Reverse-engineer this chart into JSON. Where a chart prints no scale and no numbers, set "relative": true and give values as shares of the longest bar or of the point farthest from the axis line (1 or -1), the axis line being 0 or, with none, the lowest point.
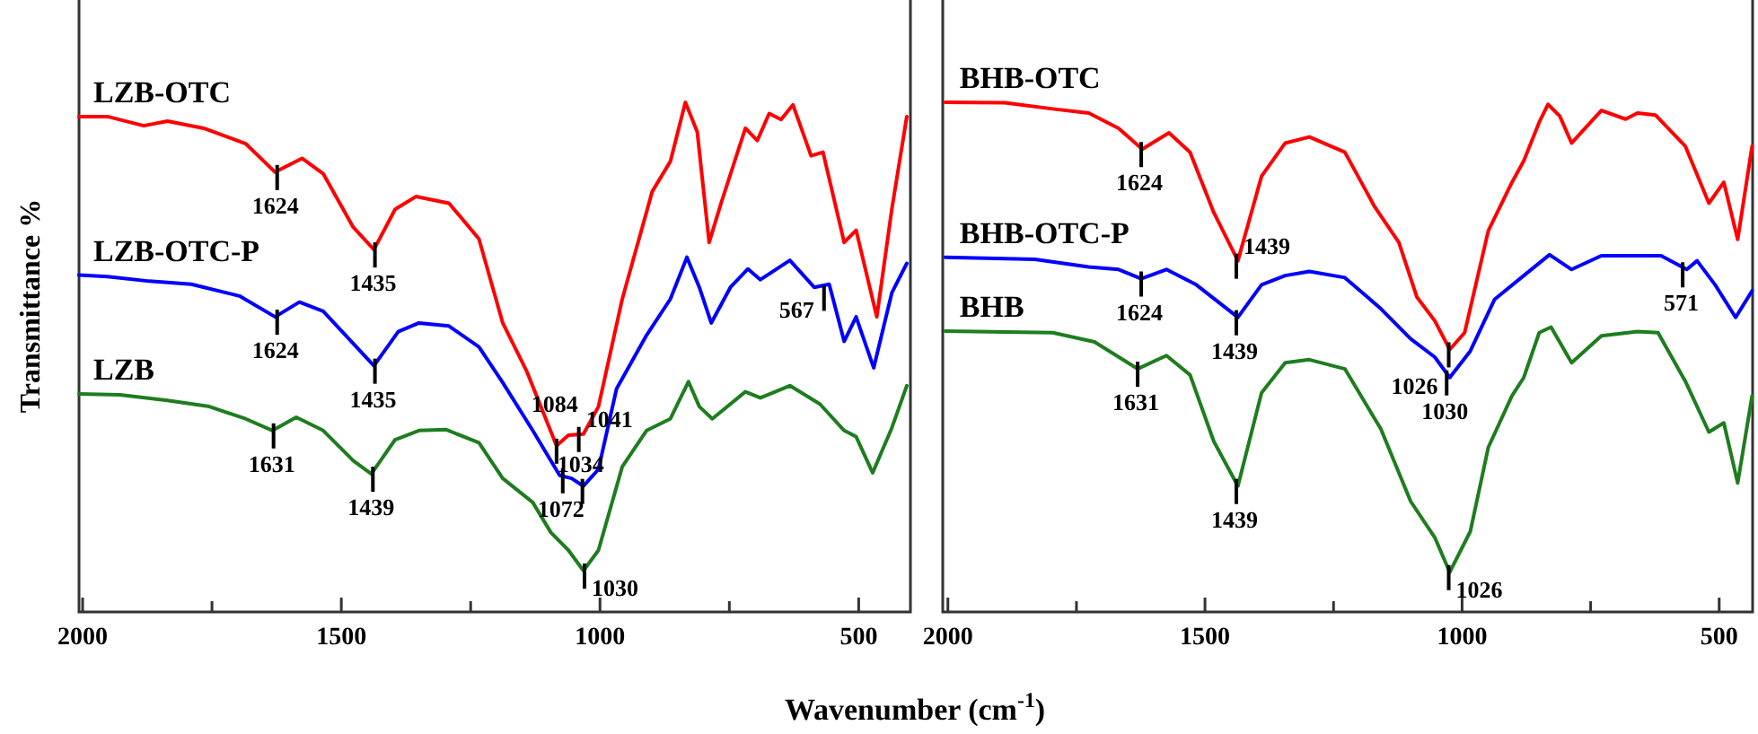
{
  "chart_data": [
    {
      "type": "line",
      "relative": true,
      "ylabel": "Transmittance %",
      "xlabel": "Wavenumber (cm$^{-1}$)",
      "xlim": [
        2007,
        400
      ],
      "xticks": [
        2000,
        {
          "value": 1750,
          "label": null
        },
        1500,
        {
          "value": 1250,
          "label": null
        },
        1000,
        {
          "value": 750,
          "label": null
        },
        500
      ],
      "series": [
        {
          "name": "LZB-OTC",
          "color": "#ff0000",
          "x": [
            2007,
            1952,
            1882,
            1836,
            1766,
            1685,
            1628,
            1576,
            1535,
            1477,
            1437,
            1396,
            1356,
            1292,
            1234,
            1188,
            1142,
            1084,
            1061,
            1032,
            1003,
            957,
            899,
            864,
            835,
            812,
            789,
            766,
            719,
            696,
            673,
            650,
            627,
            592,
            569,
            528,
            505,
            465,
            436,
            407
          ],
          "values": [
            0.972,
            0.972,
            0.954,
            0.963,
            0.949,
            0.919,
            0.863,
            0.89,
            0.86,
            0.755,
            0.711,
            0.79,
            0.815,
            0.802,
            0.732,
            0.567,
            0.473,
            0.326,
            0.347,
            0.349,
            0.403,
            0.614,
            0.825,
            0.884,
            1,
            0.942,
            0.725,
            0.802,
            0.949,
            0.925,
            0.978,
            0.966,
            0.995,
            0.895,
            0.902,
            0.725,
            0.749,
            0.579,
            0.79,
            0.972
          ]
        },
        {
          "name": "LZB-OTC-P",
          "color": "#0000ff",
          "x": [
            2007,
            1952,
            1871,
            1790,
            1697,
            1628,
            1581,
            1535,
            1437,
            1390,
            1350,
            1292,
            1234,
            1188,
            1130,
            1078,
            1055,
            1032,
            1003,
            968,
            910,
            864,
            832,
            808,
            785,
            748,
            714,
            690,
            633,
            586,
            557,
            528,
            505,
            471,
            436,
            407
          ],
          "values": [
            0.661,
            0.658,
            0.649,
            0.643,
            0.62,
            0.579,
            0.608,
            0.59,
            0.483,
            0.55,
            0.567,
            0.561,
            0.52,
            0.45,
            0.356,
            0.268,
            0.262,
            0.247,
            0.28,
            0.438,
            0.543,
            0.614,
            0.696,
            0.637,
            0.567,
            0.637,
            0.673,
            0.652,
            0.69,
            0.637,
            0.643,
            0.531,
            0.579,
            0.479,
            0.626,
            0.684
          ]
        },
        {
          "name": "LZB",
          "color": "#1e7d1e",
          "x": [
            2007,
            1928,
            1836,
            1755,
            1685,
            1633,
            1587,
            1535,
            1477,
            1442,
            1396,
            1350,
            1298,
            1234,
            1188,
            1130,
            1095,
            1061,
            1032,
            1003,
            957,
            910,
            864,
            829,
            808,
            783,
            719,
            690,
            633,
            575,
            528,
            505,
            473,
            436,
            407
          ],
          "values": [
            0.428,
            0.426,
            0.415,
            0.403,
            0.379,
            0.356,
            0.382,
            0.356,
            0.297,
            0.271,
            0.338,
            0.356,
            0.358,
            0.332,
            0.262,
            0.215,
            0.156,
            0.121,
            0.081,
            0.121,
            0.285,
            0.356,
            0.379,
            0.452,
            0.403,
            0.379,
            0.432,
            0.42,
            0.444,
            0.408,
            0.356,
            0.344,
            0.273,
            0.361,
            0.444
          ]
        }
      ],
      "annotations": [
        {
          "text": "1624",
          "x": 1624,
          "y": 0.863
        },
        {
          "text": "1435",
          "x": 1435,
          "y": 0.711
        },
        {
          "text": "1084",
          "x": 1084,
          "y": 0.326
        },
        {
          "text": "1041",
          "x": 1041,
          "y": 0.349
        },
        {
          "text": "1624",
          "x": 1624,
          "y": 0.579
        },
        {
          "text": "1435",
          "x": 1435,
          "y": 0.483
        },
        {
          "text": "1072",
          "x": 1072,
          "y": 0.268
        },
        {
          "text": "1034",
          "x": 1034,
          "y": 0.247
        },
        {
          "text": "567",
          "x": 567,
          "y": 0.626
        },
        {
          "text": "1631",
          "x": 1631,
          "y": 0.356
        },
        {
          "text": "1439",
          "x": 1439,
          "y": 0.271
        },
        {
          "text": "1030",
          "x": 1030,
          "y": 0.081
        }
      ]
    },
    {
      "type": "line",
      "relative": true,
      "xlim": [
        2010,
        435
      ],
      "xticks": [
        2000,
        {
          "value": 1750,
          "label": null
        },
        1500,
        {
          "value": 1250,
          "label": null
        },
        1000,
        {
          "value": 750,
          "label": null
        },
        500
      ],
      "series": [
        {
          "name": "BHB-OTC",
          "color": "#ff0000",
          "x": [
            2005,
            1889,
            1796,
            1726,
            1668,
            1622,
            1570,
            1529,
            1483,
            1436,
            1390,
            1344,
            1297,
            1228,
            1170,
            1123,
            1088,
            1053,
            1024,
            995,
            949,
            903,
            880,
            850,
            833,
            810,
            787,
            729,
            682,
            659,
            624,
            566,
            520,
            491,
            464,
            436
          ],
          "values": [
            1,
            0.999,
            0.987,
            0.979,
            0.949,
            0.908,
            0.94,
            0.902,
            0.784,
            0.689,
            0.855,
            0.92,
            0.932,
            0.902,
            0.795,
            0.725,
            0.618,
            0.571,
            0.515,
            0.548,
            0.748,
            0.843,
            0.885,
            0.961,
            0.996,
            0.973,
            0.92,
            0.984,
            0.967,
            0.979,
            0.975,
            0.914,
            0.802,
            0.843,
            0.731,
            0.914
          ]
        },
        {
          "name": "BHB-OTC-P",
          "color": "#0000ff",
          "x": [
            2005,
            1831,
            1726,
            1668,
            1624,
            1575,
            1517,
            1436,
            1390,
            1344,
            1297,
            1228,
            1158,
            1100,
            1053,
            1024,
            984,
            937,
            880,
            830,
            787,
            729,
            613,
            563,
            543,
            508,
            468,
            436
          ],
          "values": [
            0.696,
            0.692,
            0.677,
            0.672,
            0.654,
            0.672,
            0.642,
            0.578,
            0.642,
            0.66,
            0.668,
            0.656,
            0.595,
            0.536,
            0.5,
            0.46,
            0.512,
            0.613,
            0.66,
            0.701,
            0.672,
            0.699,
            0.699,
            0.672,
            0.689,
            0.642,
            0.578,
            0.63
          ]
        },
        {
          "name": "BHB",
          "color": "#1e7d1e",
          "x": [
            2005,
            1796,
            1715,
            1631,
            1575,
            1529,
            1483,
            1436,
            1390,
            1344,
            1297,
            1228,
            1158,
            1100,
            1053,
            1024,
            984,
            949,
            903,
            880,
            850,
            827,
            787,
            729,
            659,
            619,
            566,
            520,
            491,
            464,
            436
          ],
          "values": [
            0.551,
            0.548,
            0.53,
            0.477,
            0.503,
            0.465,
            0.335,
            0.247,
            0.43,
            0.489,
            0.495,
            0.477,
            0.359,
            0.217,
            0.146,
            0.078,
            0.158,
            0.323,
            0.424,
            0.46,
            0.548,
            0.559,
            0.489,
            0.542,
            0.55,
            0.548,
            0.453,
            0.353,
            0.371,
            0.253,
            0.424
          ]
        }
      ],
      "annotations": [
        {
          "text": "1624",
          "x": 1624,
          "y": 0.908
        },
        {
          "text": "1439",
          "x": 1439,
          "y": 0.689
        },
        {
          "text": "1026",
          "x": 1026,
          "y": 0.515
        },
        {
          "text": "1624",
          "x": 1624,
          "y": 0.654
        },
        {
          "text": "1439",
          "x": 1439,
          "y": 0.578
        },
        {
          "text": "1030",
          "x": 1030,
          "y": 0.46
        },
        {
          "text": "571",
          "x": 571,
          "y": 0.672
        },
        {
          "text": "1631",
          "x": 1631,
          "y": 0.477
        },
        {
          "text": "1439",
          "x": 1439,
          "y": 0.247
        },
        {
          "text": "1026",
          "x": 1026,
          "y": 0.078
        }
      ]
    }
  ]
}
